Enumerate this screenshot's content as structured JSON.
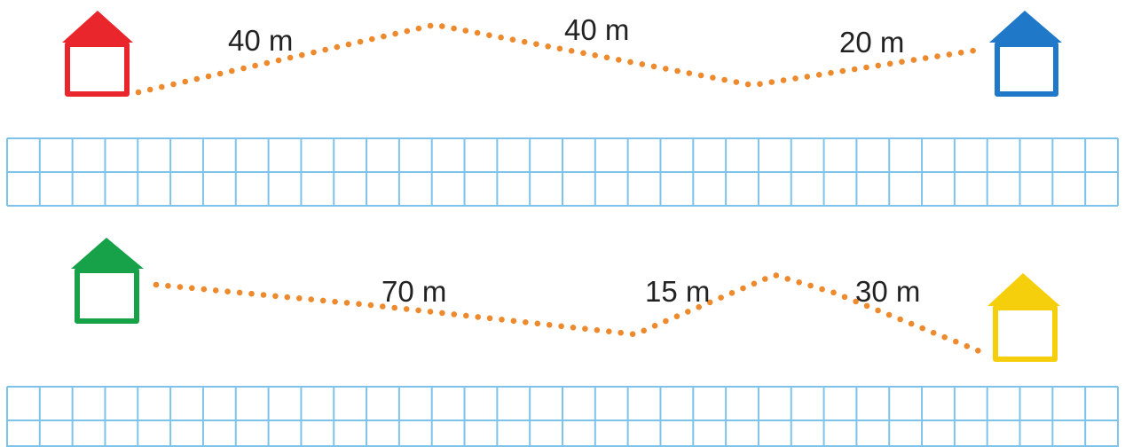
{
  "colors": {
    "dots": "#ee8a2e",
    "grid": "#7ec3ea",
    "text": "#222222"
  },
  "rows": [
    {
      "start_house": {
        "icon": "house-icon",
        "color": "#e8262b"
      },
      "end_house": {
        "icon": "house-icon",
        "color": "#1f78c8"
      },
      "segments": [
        {
          "distance": "40 m"
        },
        {
          "distance": "40 m"
        },
        {
          "distance": "20 m"
        }
      ]
    },
    {
      "start_house": {
        "icon": "house-icon",
        "color": "#17a24a"
      },
      "end_house": {
        "icon": "house-icon",
        "color": "#f6cf0c"
      },
      "segments": [
        {
          "distance": "70 m"
        },
        {
          "distance": "15 m"
        },
        {
          "distance": "30 m"
        }
      ]
    }
  ],
  "answer_grids": [
    {
      "rows": 2,
      "columns": 34
    },
    {
      "rows": 2,
      "columns": 34
    }
  ]
}
